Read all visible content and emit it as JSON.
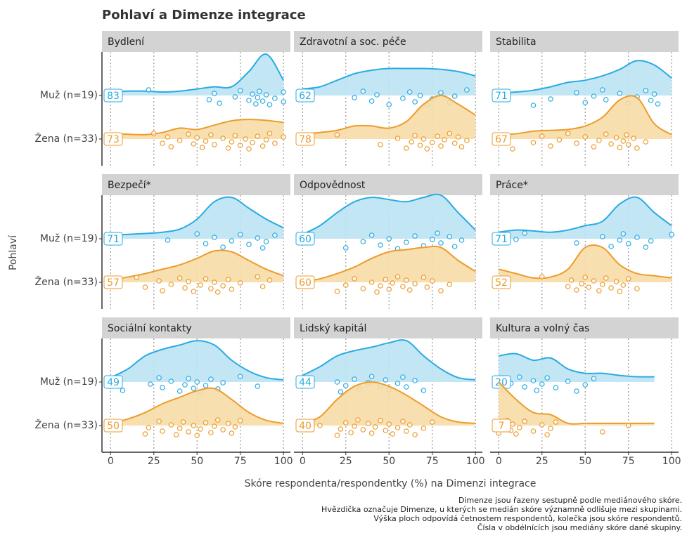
{
  "chart_data": {
    "type": "ridgeline",
    "title": "Pohlaví a Dimenze integrace",
    "x_label": "Skóre respondenta/respondentky (%) na Dimenzi integrace",
    "y_label": "Pohlaví",
    "xlim": [
      -5,
      104
    ],
    "xticks": [
      0,
      25,
      50,
      75,
      100
    ],
    "grid": true,
    "series": [
      {
        "name": "Muž (n=19)",
        "color": "#29abe2",
        "fill": "#bde3f3"
      },
      {
        "name": "Žena (n=33)",
        "color": "#ee9b2b",
        "fill": "#f6dba6"
      }
    ],
    "density_x": [
      0,
      10,
      20,
      30,
      40,
      50,
      60,
      70,
      80,
      90,
      100
    ],
    "panels": [
      {
        "title": "Bydlení",
        "medians": [
          83,
          73
        ],
        "density": [
          [
            0.08,
            0.1,
            0.1,
            0.08,
            0.1,
            0.15,
            0.2,
            0.2,
            0.55,
            0.95,
            0.35
          ],
          [
            0.13,
            0.11,
            0.1,
            0.15,
            0.25,
            0.22,
            0.32,
            0.42,
            0.45,
            0.43,
            0.38
          ]
        ],
        "points": [
          [
            22,
            57,
            60,
            63,
            72,
            75,
            80,
            82,
            84,
            85,
            86,
            88,
            90,
            92,
            95,
            100,
            100
          ],
          [
            25,
            30,
            33,
            35,
            40,
            45,
            48,
            50,
            53,
            55,
            58,
            60,
            65,
            68,
            70,
            72,
            75,
            78,
            80,
            82,
            85,
            88,
            90,
            92,
            95,
            100
          ]
        ]
      },
      {
        "title": "Zdravotní a soc. péče",
        "medians": [
          62,
          78
        ],
        "density": [
          [
            0.15,
            0.2,
            0.35,
            0.5,
            0.58,
            0.62,
            0.62,
            0.62,
            0.6,
            0.55,
            0.45
          ],
          [
            0.12,
            0.15,
            0.2,
            0.3,
            0.3,
            0.25,
            0.4,
            0.8,
            1.0,
            0.8,
            0.55
          ]
        ],
        "points": [
          [
            30,
            35,
            40,
            43,
            50,
            58,
            62,
            65,
            68,
            72,
            75,
            80,
            85,
            88,
            95
          ],
          [
            0,
            20,
            45,
            55,
            60,
            63,
            65,
            68,
            70,
            72,
            75,
            78,
            80,
            82,
            85,
            88,
            90,
            92,
            95
          ]
        ]
      },
      {
        "title": "Stabilita",
        "medians": [
          71,
          67
        ],
        "density": [
          [
            0.05,
            0.08,
            0.12,
            0.2,
            0.3,
            0.35,
            0.45,
            0.6,
            0.8,
            0.7,
            0.4
          ],
          [
            0.1,
            0.12,
            0.18,
            0.2,
            0.22,
            0.3,
            0.5,
            0.9,
            0.95,
            0.35,
            0.1
          ]
        ],
        "points": [
          [
            20,
            30,
            45,
            50,
            55,
            60,
            62,
            70,
            75,
            80,
            85,
            88,
            90,
            92
          ],
          [
            8,
            20,
            25,
            30,
            35,
            40,
            45,
            50,
            55,
            58,
            62,
            65,
            68,
            70,
            72,
            74,
            75,
            78,
            80,
            85
          ]
        ]
      },
      {
        "title": "Bezpečí*",
        "medians": [
          71,
          57
        ],
        "density": [
          [
            0.08,
            0.1,
            0.12,
            0.15,
            0.22,
            0.45,
            0.85,
            0.95,
            0.7,
            0.45,
            0.25
          ],
          [
            0.05,
            0.12,
            0.2,
            0.3,
            0.4,
            0.55,
            0.72,
            0.7,
            0.5,
            0.3,
            0.15
          ]
        ],
        "points": [
          [
            33,
            50,
            55,
            60,
            65,
            70,
            75,
            80,
            85,
            88,
            90,
            95
          ],
          [
            5,
            15,
            20,
            28,
            30,
            35,
            40,
            43,
            45,
            48,
            52,
            55,
            58,
            60,
            62,
            65,
            68,
            70,
            75,
            85,
            88,
            92
          ]
        ]
      },
      {
        "title": "Odpovědnost",
        "medians": [
          60,
          60
        ],
        "density": [
          [
            0.1,
            0.3,
            0.6,
            0.85,
            0.95,
            0.9,
            0.85,
            0.95,
            1.0,
            0.6,
            0.2
          ],
          [
            0.02,
            0.08,
            0.2,
            0.35,
            0.55,
            0.7,
            0.75,
            0.8,
            0.8,
            0.5,
            0.25
          ]
        ],
        "points": [
          [
            25,
            35,
            40,
            45,
            50,
            55,
            60,
            65,
            70,
            75,
            78,
            80,
            85,
            88,
            92
          ],
          [
            20,
            25,
            30,
            35,
            40,
            43,
            45,
            48,
            50,
            52,
            55,
            58,
            60,
            62,
            65,
            70,
            72,
            75,
            80,
            85
          ]
        ]
      },
      {
        "title": "Práce*",
        "medians": [
          71,
          52
        ],
        "density": [
          [
            0.15,
            0.2,
            0.18,
            0.15,
            0.2,
            0.3,
            0.4,
            0.8,
            0.95,
            0.6,
            0.3
          ],
          [
            0.3,
            0.2,
            0.1,
            0.12,
            0.3,
            0.8,
            0.8,
            0.4,
            0.2,
            0.15,
            0.1
          ]
        ],
        "points": [
          [
            10,
            15,
            45,
            60,
            65,
            70,
            72,
            75,
            80,
            85,
            88,
            100
          ],
          [
            0,
            25,
            40,
            42,
            45,
            48,
            50,
            52,
            55,
            58,
            60,
            62,
            65,
            68,
            70,
            72,
            75,
            80
          ]
        ]
      },
      {
        "title": "Sociální kontakty",
        "medians": [
          49,
          50
        ],
        "density": [
          [
            0.1,
            0.3,
            0.6,
            0.75,
            0.85,
            0.95,
            0.85,
            0.5,
            0.25,
            0.1,
            0.05
          ],
          [
            0.05,
            0.15,
            0.3,
            0.5,
            0.65,
            0.8,
            0.85,
            0.6,
            0.3,
            0.12,
            0.05
          ]
        ],
        "points": [
          [
            7,
            23,
            28,
            30,
            35,
            40,
            43,
            45,
            48,
            50,
            52,
            55,
            58,
            62,
            65,
            75,
            85
          ],
          [
            20,
            22,
            28,
            30,
            35,
            38,
            40,
            42,
            45,
            48,
            50,
            52,
            55,
            58,
            60,
            62,
            65,
            68,
            70,
            72,
            75
          ]
        ]
      },
      {
        "title": "Lidský kapitál",
        "medians": [
          44,
          40
        ],
        "density": [
          [
            0.15,
            0.35,
            0.6,
            0.72,
            0.8,
            0.9,
            0.95,
            0.6,
            0.3,
            0.1,
            0.05
          ],
          [
            0.05,
            0.2,
            0.6,
            0.9,
            1.0,
            0.9,
            0.7,
            0.45,
            0.2,
            0.08,
            0.05
          ]
        ],
        "points": [
          [
            20,
            22,
            25,
            30,
            33,
            38,
            40,
            45,
            48,
            50,
            55,
            58,
            60,
            65,
            70
          ],
          [
            10,
            20,
            22,
            25,
            28,
            30,
            32,
            35,
            38,
            40,
            42,
            45,
            48,
            50,
            52,
            55,
            58,
            60,
            62,
            65,
            70,
            75
          ]
        ]
      },
      {
        "title": "Kultura a volný čas",
        "medians": [
          20,
          7
        ],
        "density": [
          [
            0.6,
            0.65,
            0.5,
            0.55,
            0.3,
            0.2,
            0.2,
            0.15,
            0.12,
            0.12,
            null
          ],
          [
            1.0,
            0.6,
            0.3,
            0.25,
            0.05,
            0.05,
            0.05,
            0.05,
            0.05,
            0.05,
            null
          ]
        ],
        "points": [
          [
            3,
            7,
            12,
            15,
            20,
            22,
            25,
            28,
            33,
            40,
            45,
            50,
            55
          ],
          [
            0,
            3,
            5,
            7,
            8,
            10,
            12,
            15,
            20,
            25,
            28,
            30,
            33,
            60,
            75
          ]
        ]
      }
    ],
    "notes": [
      "Dimenze jsou řazeny sestupně podle mediánového skóre.",
      "Hvězdička označuje Dimenze, u kterých se medián skóre významně odlišuje mezi skupinami.",
      "Výška ploch odpovídá četnostem respondentů, kolečka jsou skóre respondentů.",
      "Čísla v obdélnících jsou mediány skóre dané skupiny."
    ]
  }
}
